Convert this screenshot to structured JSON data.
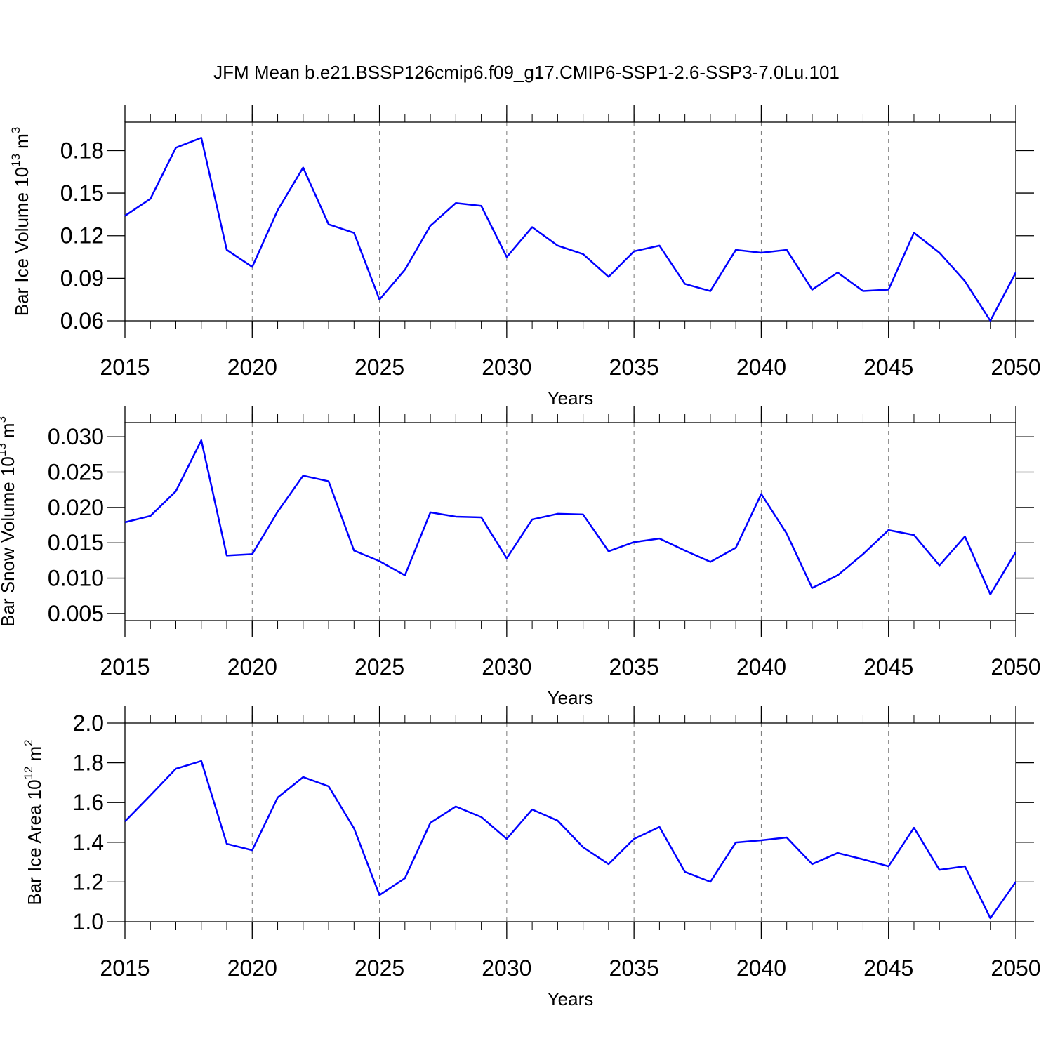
{
  "title": "JFM Mean b.e21.BSSP126cmip6.f09_g17.CMIP6-SSP1-2.6-SSP3-7.0Lu.101",
  "chart_data": [
    {
      "type": "line",
      "xlabel": "Years",
      "ylabel": [
        "Bar Ice Volume 10",
        "13",
        "m",
        "3"
      ],
      "x": [
        2015,
        2016,
        2017,
        2018,
        2019,
        2020,
        2021,
        2022,
        2023,
        2024,
        2025,
        2026,
        2027,
        2028,
        2029,
        2030,
        2031,
        2032,
        2033,
        2034,
        2035,
        2036,
        2037,
        2038,
        2039,
        2040,
        2041,
        2042,
        2043,
        2044,
        2045,
        2046,
        2047,
        2048,
        2049,
        2050
      ],
      "values": [
        0.134,
        0.146,
        0.182,
        0.189,
        0.11,
        0.098,
        0.138,
        0.168,
        0.128,
        0.122,
        0.075,
        0.096,
        0.127,
        0.143,
        0.141,
        0.105,
        0.126,
        0.113,
        0.107,
        0.091,
        0.109,
        0.113,
        0.086,
        0.081,
        0.11,
        0.108,
        0.11,
        0.082,
        0.094,
        0.081,
        0.082,
        0.122,
        0.108,
        0.088,
        0.06,
        0.094
      ],
      "color": "#0000ff",
      "xlim": [
        2015,
        2050
      ],
      "xticks": [
        2015,
        2020,
        2025,
        2030,
        2035,
        2040,
        2045,
        2050
      ],
      "ylim": [
        0.06,
        0.2
      ],
      "yticks": [
        0.06,
        0.09,
        0.12,
        0.15,
        0.18
      ],
      "xgrid": true
    },
    {
      "type": "line",
      "xlabel": "Years",
      "ylabel": [
        "Bar Snow Volume 10",
        "13",
        "m",
        "3"
      ],
      "x": [
        2015,
        2016,
        2017,
        2018,
        2019,
        2020,
        2021,
        2022,
        2023,
        2024,
        2025,
        2026,
        2027,
        2028,
        2029,
        2030,
        2031,
        2032,
        2033,
        2034,
        2035,
        2036,
        2037,
        2038,
        2039,
        2040,
        2041,
        2042,
        2043,
        2044,
        2045,
        2046,
        2047,
        2048,
        2049,
        2050
      ],
      "values": [
        0.0179,
        0.0188,
        0.0223,
        0.0295,
        0.0132,
        0.0134,
        0.0194,
        0.0245,
        0.0237,
        0.0139,
        0.0124,
        0.0104,
        0.0193,
        0.0187,
        0.0186,
        0.0128,
        0.0183,
        0.0191,
        0.019,
        0.0138,
        0.0151,
        0.0156,
        0.0139,
        0.0123,
        0.0143,
        0.0219,
        0.0163,
        0.0086,
        0.0104,
        0.0134,
        0.0168,
        0.0161,
        0.0118,
        0.0159,
        0.0077,
        0.0137
      ],
      "color": "#0000ff",
      "xlim": [
        2015,
        2050
      ],
      "xticks": [
        2015,
        2020,
        2025,
        2030,
        2035,
        2040,
        2045,
        2050
      ],
      "ylim": [
        0.004,
        0.032
      ],
      "yticks": [
        0.005,
        {
          "value": 0.01,
          "label": "0.010"
        },
        0.015,
        {
          "value": 0.02,
          "label": "0.020"
        },
        0.025,
        {
          "value": 0.03,
          "label": "0.030"
        }
      ],
      "xgrid": true
    },
    {
      "type": "line",
      "xlabel": "Years",
      "ylabel": [
        "Bar Ice Area 10",
        "12",
        "m",
        "2"
      ],
      "x": [
        2015,
        2016,
        2017,
        2018,
        2019,
        2020,
        2021,
        2022,
        2023,
        2024,
        2025,
        2026,
        2027,
        2028,
        2029,
        2030,
        2031,
        2032,
        2033,
        2034,
        2035,
        2036,
        2037,
        2038,
        2039,
        2040,
        2041,
        2042,
        2043,
        2044,
        2045,
        2046,
        2047,
        2048,
        2049,
        2050
      ],
      "values": [
        1.505,
        1.636,
        1.77,
        1.809,
        1.392,
        1.36,
        1.625,
        1.728,
        1.682,
        1.47,
        1.134,
        1.219,
        1.498,
        1.58,
        1.527,
        1.417,
        1.565,
        1.509,
        1.375,
        1.29,
        1.417,
        1.477,
        1.251,
        1.201,
        1.399,
        1.41,
        1.424,
        1.29,
        1.346,
        1.314,
        1.279,
        1.473,
        1.261,
        1.279,
        1.018,
        1.201
      ],
      "color": "#0000ff",
      "xlim": [
        2015,
        2050
      ],
      "xticks": [
        2015,
        2020,
        2025,
        2030,
        2035,
        2040,
        2045,
        2050
      ],
      "ylim": [
        1.0,
        2.0
      ],
      "yticks": [
        {
          "value": 1.0,
          "label": "1.0"
        },
        1.2,
        1.4,
        1.6,
        1.8,
        {
          "value": 2.0,
          "label": "2.0"
        }
      ],
      "xgrid": true
    }
  ]
}
